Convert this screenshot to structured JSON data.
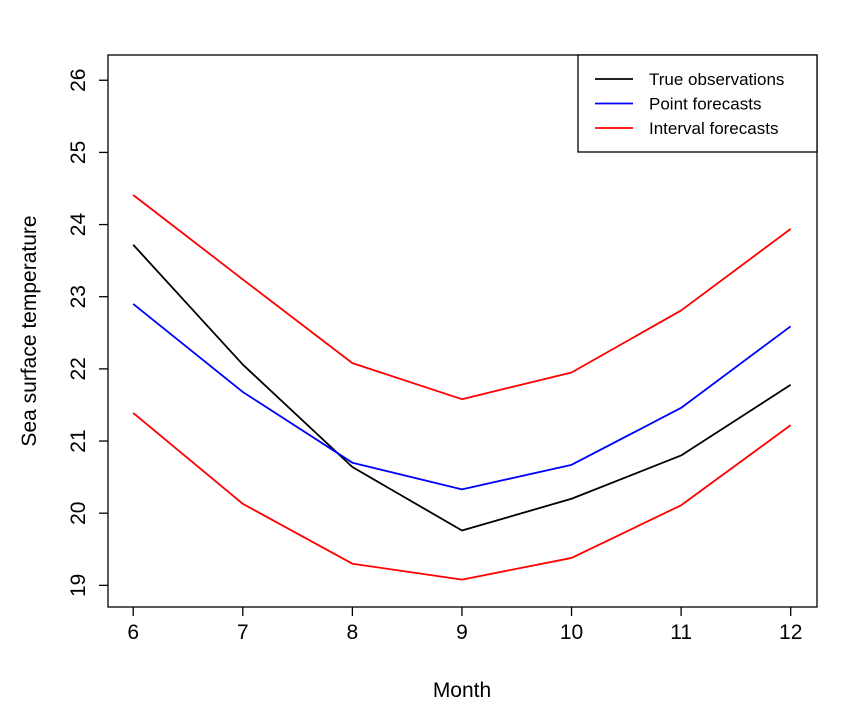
{
  "chart_data": {
    "type": "line",
    "title": "",
    "xlabel": "Month",
    "ylabel": "Sea surface temperature",
    "x": [
      6,
      7,
      8,
      9,
      10,
      11,
      12
    ],
    "xlim": [
      5.77,
      12.24
    ],
    "ylim": [
      18.7,
      26.35
    ],
    "xticks": [
      "6",
      "7",
      "8",
      "9",
      "10",
      "11",
      "12"
    ],
    "yticks": [
      "19",
      "20",
      "21",
      "22",
      "23",
      "24",
      "25",
      "26"
    ],
    "grid": false,
    "legend_position": "top-right",
    "series": [
      {
        "name": "True observations",
        "color": "#000000",
        "values": [
          23.72,
          22.06,
          20.64,
          19.76,
          20.2,
          20.8,
          21.78
        ]
      },
      {
        "name": "Point forecasts",
        "color": "#0000ff",
        "values": [
          22.9,
          21.68,
          20.7,
          20.33,
          20.67,
          21.46,
          22.59
        ]
      },
      {
        "name": "Interval forecasts",
        "color": "#ff0000",
        "values": [
          24.41,
          23.24,
          22.08,
          21.58,
          21.95,
          22.81,
          23.94
        ]
      },
      {
        "name": "",
        "color": "#ff0000",
        "values": [
          21.39,
          20.13,
          19.3,
          19.08,
          19.38,
          20.11,
          21.22
        ]
      }
    ]
  }
}
